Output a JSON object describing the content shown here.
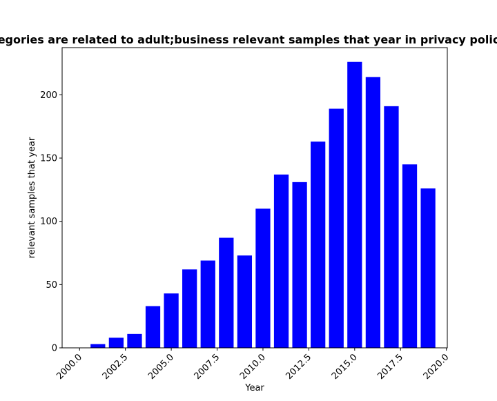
{
  "chart_data": {
    "type": "bar",
    "title": "egories are related to adult;business relevant samples that year in privacy polic",
    "xlabel": "Year",
    "ylabel": "relevant samples that year",
    "x": [
      2001,
      2002,
      2003,
      2004,
      2005,
      2006,
      2007,
      2008,
      2009,
      2010,
      2011,
      2012,
      2013,
      2014,
      2015,
      2016,
      2017,
      2018,
      2019
    ],
    "values": [
      3,
      8,
      11,
      33,
      43,
      62,
      69,
      87,
      73,
      110,
      137,
      131,
      163,
      189,
      226,
      214,
      191,
      145,
      126
    ],
    "bar_width": 0.8,
    "xlim": [
      1999.05,
      2020.05
    ],
    "ylim": [
      0,
      237.3
    ],
    "xticks": [
      2000.0,
      2002.5,
      2005.0,
      2007.5,
      2010.0,
      2012.5,
      2015.0,
      2017.5,
      2020.0
    ],
    "xtick_labels": [
      "2000.0",
      "2002.5",
      "2005.0",
      "2007.5",
      "2010.0",
      "2012.5",
      "2015.0",
      "2017.5",
      "2020.0"
    ],
    "yticks": [
      0,
      50,
      100,
      150,
      200
    ],
    "ytick_labels": [
      "0",
      "50",
      "100",
      "150",
      "200"
    ],
    "bar_color": "#0000ff",
    "grid": false,
    "legend": "none"
  }
}
